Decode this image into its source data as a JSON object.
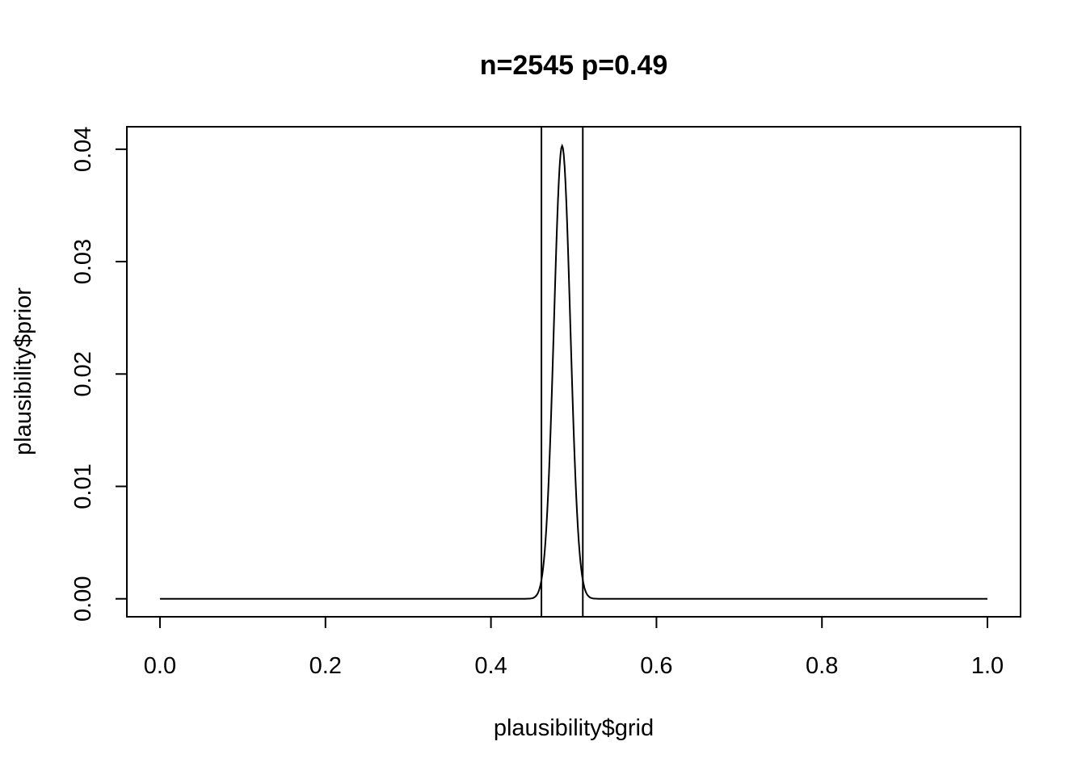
{
  "chart_data": {
    "type": "line",
    "title": "n=2545  p=0.49",
    "xlabel": "plausibility$grid",
    "ylabel": "plausibility$prior",
    "xlim": [
      -0.04,
      1.04
    ],
    "ylim": [
      -0.0016,
      0.042
    ],
    "x_ticks": [
      0.0,
      0.2,
      0.4,
      0.6,
      0.8,
      1.0
    ],
    "x_tick_labels": [
      "0.0",
      "0.2",
      "0.4",
      "0.6",
      "0.8",
      "1.0"
    ],
    "y_ticks": [
      0.0,
      0.01,
      0.02,
      0.03,
      0.04
    ],
    "y_tick_labels": [
      "0.00",
      "0.01",
      "0.02",
      "0.03",
      "0.04"
    ],
    "series": [
      {
        "peak_x": 0.486,
        "peak_y": 0.0403,
        "sd": 0.0099,
        "x_range": [
          0.0,
          1.0
        ]
      }
    ],
    "vlines": [
      0.461,
      0.511
    ],
    "grid": false,
    "legend": "none"
  }
}
